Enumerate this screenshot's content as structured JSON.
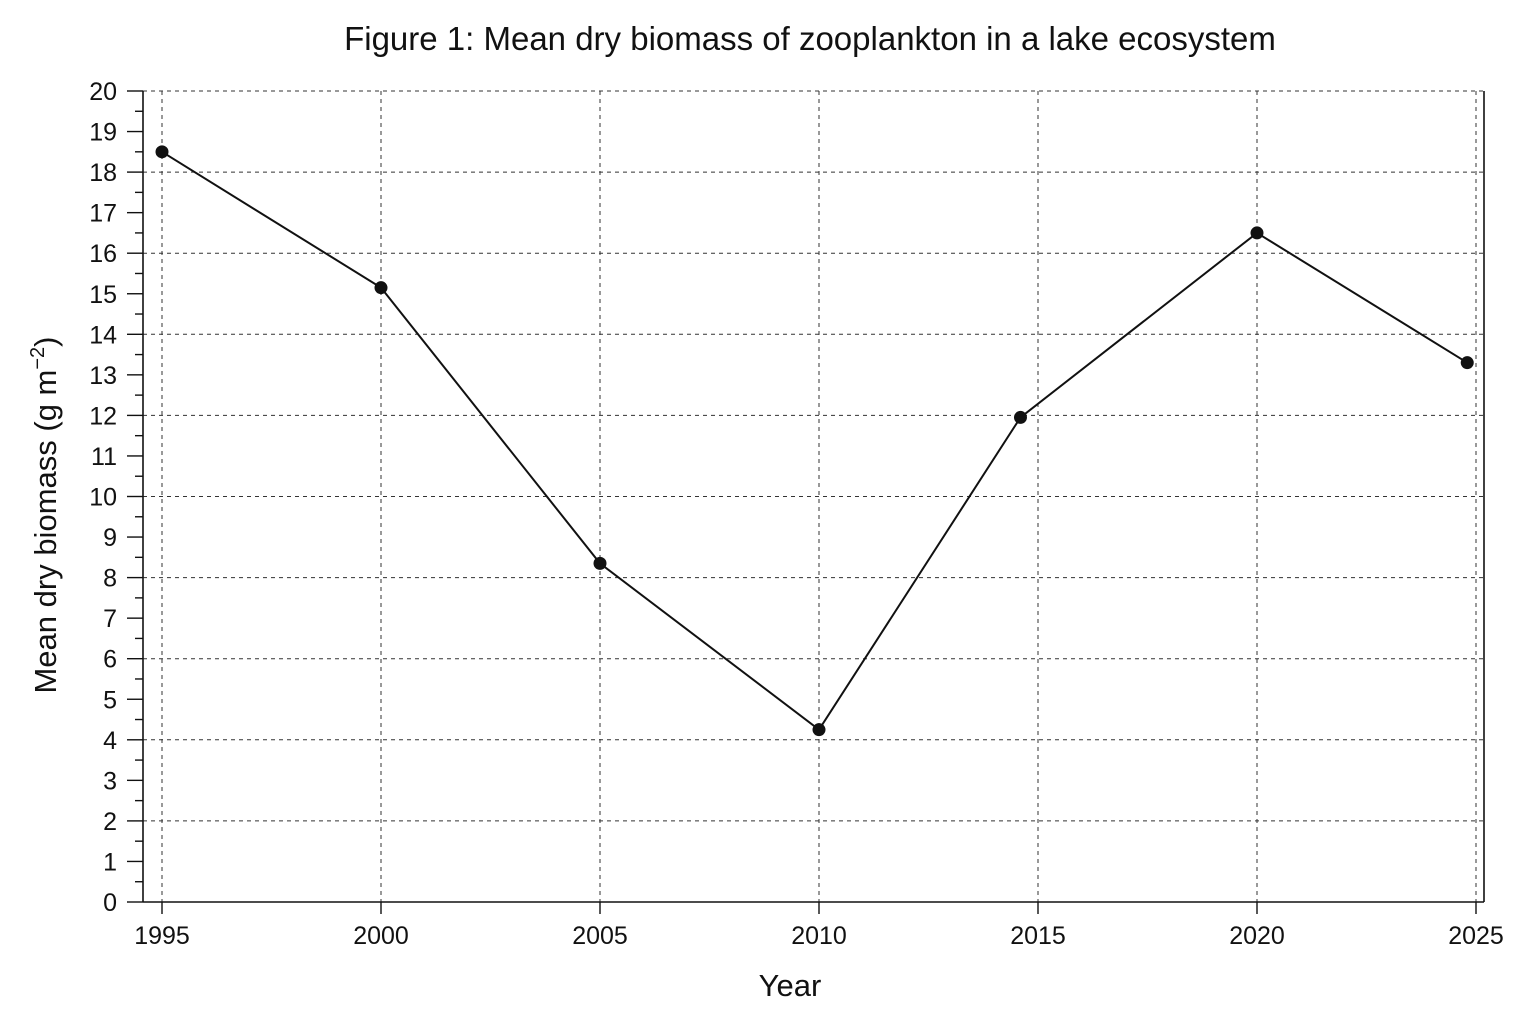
{
  "chart_data": {
    "type": "line",
    "title": "Figure 1: Mean dry biomass of zooplankton in a lake ecosystem",
    "xlabel": "Year",
    "ylabel": "Mean dry biomass (g m",
    "ylabel_sup": "−2",
    "ylabel_close": ")",
    "xlim": [
      1995,
      2025
    ],
    "ylim": [
      0,
      20
    ],
    "x_ticks": [
      "1995",
      "2000",
      "2005",
      "2010",
      "2015",
      "2020",
      "2025"
    ],
    "y_ticks": [
      "0",
      "1",
      "2",
      "3",
      "4",
      "5",
      "6",
      "7",
      "8",
      "9",
      "10",
      "11",
      "12",
      "13",
      "14",
      "15",
      "16",
      "17",
      "18",
      "19",
      "20"
    ],
    "grid": "dashed, major ticks",
    "series": [
      {
        "x": [
          1995,
          2000,
          2005,
          2010,
          2014.6,
          2020,
          2024.8
        ],
        "y": [
          18.5,
          15.15,
          8.35,
          4.25,
          11.95,
          16.5,
          13.3
        ]
      }
    ]
  }
}
